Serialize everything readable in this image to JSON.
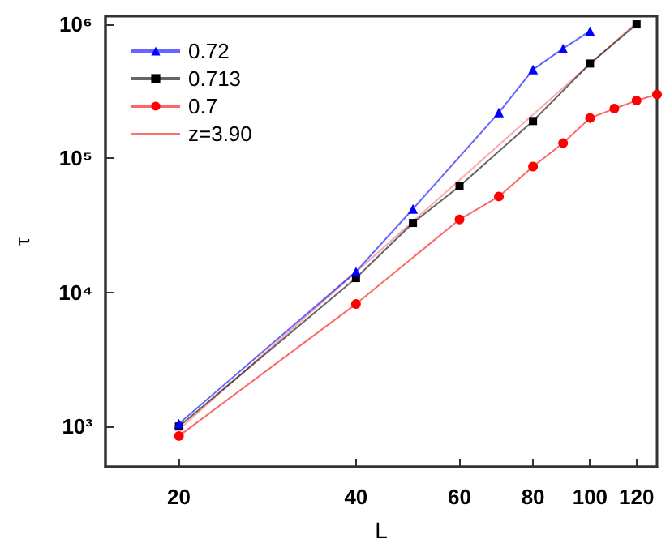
{
  "chart_data": {
    "type": "line",
    "xlabel": "L",
    "ylabel": "τ",
    "log": "xy",
    "legend": "top left",
    "xlim": [
      15,
      130
    ],
    "xticks": [
      20,
      40,
      60,
      80,
      100,
      120
    ],
    "ylim": [
      500,
      1150000
    ],
    "yticks": [
      {
        "value": 1000,
        "label": "10³"
      },
      {
        "value": 10000,
        "label": "10⁴"
      },
      {
        "value": 100000,
        "label": "10⁵"
      },
      {
        "value": 1000000,
        "label": "10⁶"
      }
    ],
    "series": [
      {
        "name": "0.72",
        "color": "#0000ff",
        "marker": "triangle",
        "x": [
          20,
          40,
          50,
          70,
          80,
          90,
          100
        ],
        "values": [
          1050,
          14300,
          42000,
          220000,
          460000,
          660000,
          890000
        ]
      },
      {
        "name": "0.713",
        "color": "#000000",
        "marker": "square",
        "x": [
          20,
          40,
          50,
          60,
          80,
          100,
          120
        ],
        "values": [
          1000,
          12800,
          33000,
          62000,
          190000,
          510000,
          1000000
        ]
      },
      {
        "name": "0.7",
        "color": "#ff0000",
        "marker": "circle",
        "x": [
          20,
          40,
          60,
          70,
          80,
          90,
          100,
          110,
          120,
          130
        ],
        "values": [
          850,
          8200,
          35000,
          52000,
          87000,
          130000,
          200000,
          235000,
          270000,
          300000
        ]
      },
      {
        "name": "z=3.90",
        "color": "#ff7070",
        "marker": "none",
        "x": [
          20,
          120
        ],
        "values": [
          950,
          1030000
        ]
      }
    ]
  }
}
